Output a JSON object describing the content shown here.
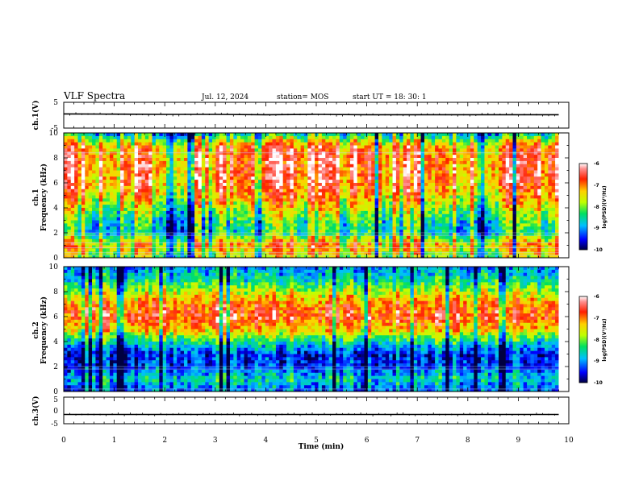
{
  "header": {
    "title": "VLF Spectra",
    "date": "Jul. 12, 2024",
    "station": "station= MOS",
    "start": "start UT = 18: 30: 1"
  },
  "chart_data": [
    {
      "type": "line",
      "name": "ch1-waveform",
      "ylabel": "ch.1(V)",
      "ylim": [
        -5,
        5
      ],
      "yticks": [
        "5",
        "-5"
      ],
      "x": [
        0,
        1,
        2,
        3,
        4,
        5,
        6,
        7,
        8,
        9,
        9.8
      ],
      "y": [
        0.5,
        0.4,
        0.3,
        0.3,
        0.2,
        0.3,
        0.2,
        0.2,
        0.2,
        0.2,
        0.2
      ]
    },
    {
      "type": "heatmap",
      "name": "ch1-spectrogram",
      "ylabel": "ch.1\nFrequency (kHz)",
      "ylim": [
        0,
        10
      ],
      "yticks": [
        "0",
        "2",
        "4",
        "6",
        "8",
        "10"
      ],
      "xlim": [
        0,
        9.8
      ],
      "zlim": [
        -10,
        -6
      ],
      "colorbar_ticks": [
        "-6",
        "-7",
        "-8",
        "-9",
        "-10"
      ],
      "colorbar_label": "log(PSD)(V²/Hz)",
      "freq_profile_kHz": [
        0,
        1,
        2,
        3,
        4,
        5,
        6,
        7,
        8,
        9,
        10
      ],
      "freq_profile_level": [
        -7.8,
        -7.0,
        -8.4,
        -8.2,
        -7.6,
        -7.0,
        -6.7,
        -6.6,
        -6.6,
        -7.0,
        -8.6
      ]
    },
    {
      "type": "heatmap",
      "name": "ch2-spectrogram",
      "ylabel": "ch.2\nFrequency (kHz)",
      "ylim": [
        0,
        10
      ],
      "yticks": [
        "0",
        "2",
        "4",
        "6",
        "8",
        "10"
      ],
      "xlim": [
        0,
        9.8
      ],
      "zlim": [
        -10,
        -6
      ],
      "colorbar_ticks": [
        "-6",
        "-7",
        "-8",
        "-9",
        "-10"
      ],
      "colorbar_label": "log(PSD)(V²/Hz)",
      "freq_profile_kHz": [
        0,
        1,
        2,
        3,
        4,
        5,
        6,
        7,
        8,
        9,
        10
      ],
      "freq_profile_level": [
        -9.2,
        -8.6,
        -9.3,
        -9.4,
        -8.4,
        -7.2,
        -6.6,
        -6.9,
        -7.7,
        -8.5,
        -9.0
      ]
    },
    {
      "type": "line",
      "name": "ch3-waveform",
      "ylabel": "ch.3(V)",
      "ylim": [
        -5,
        5
      ],
      "yticks": [
        "5",
        "0",
        "-5"
      ],
      "x": [
        0,
        1,
        2,
        3,
        4,
        5,
        6,
        7,
        8,
        9,
        9.8
      ],
      "y": [
        -1.5,
        -1.5,
        -1.5,
        -1.5,
        -1.5,
        -1.5,
        -1.5,
        -1.5,
        -1.5,
        -1.5,
        -1.5
      ]
    }
  ],
  "x_axis": {
    "label": "Time (min)",
    "xlim": [
      0,
      10
    ],
    "ticks": [
      "0",
      "1",
      "2",
      "3",
      "4",
      "5",
      "6",
      "7",
      "8",
      "9",
      "10"
    ]
  }
}
